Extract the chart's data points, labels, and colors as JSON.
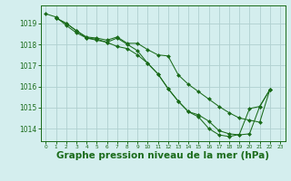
{
  "background_color": "#d4eeee",
  "grid_color": "#b0d0d0",
  "line_color": "#1a6b1a",
  "marker_color": "#1a6b1a",
  "xlabel": "Graphe pression niveau de la mer (hPa)",
  "xlabel_fontsize": 7.5,
  "ytick_labels": [
    "1014",
    "1015",
    "1016",
    "1017",
    "1018",
    "1019"
  ],
  "yticks": [
    1014,
    1015,
    1016,
    1017,
    1018,
    1019
  ],
  "xticks": [
    0,
    1,
    2,
    3,
    4,
    5,
    6,
    7,
    8,
    9,
    10,
    11,
    12,
    13,
    14,
    15,
    16,
    17,
    18,
    19,
    20,
    21,
    22,
    23
  ],
  "ylim": [
    1013.4,
    1019.85
  ],
  "xlim": [
    -0.5,
    23.5
  ],
  "series": [
    {
      "x": [
        1,
        2,
        3,
        4,
        5,
        6,
        7,
        8,
        9,
        10,
        11,
        12,
        13,
        14,
        15,
        16,
        17,
        18,
        19,
        20,
        21,
        22
      ],
      "y": [
        1019.25,
        1019.0,
        1018.65,
        1018.35,
        1018.3,
        1018.2,
        1018.35,
        1018.05,
        1018.05,
        1017.75,
        1017.5,
        1017.45,
        1016.55,
        1016.1,
        1015.75,
        1015.4,
        1015.05,
        1014.75,
        1014.5,
        1014.4,
        1014.3,
        1015.85
      ]
    },
    {
      "x": [
        1,
        2,
        3,
        4,
        5,
        6,
        7,
        8,
        9,
        10,
        11,
        12,
        13,
        14,
        15,
        16,
        17,
        18,
        19,
        20,
        21,
        22
      ],
      "y": [
        1019.25,
        1019.0,
        1018.65,
        1018.3,
        1018.2,
        1018.1,
        1018.3,
        1018.0,
        1017.7,
        1017.1,
        1016.6,
        1015.9,
        1015.3,
        1014.8,
        1014.65,
        1014.35,
        1013.9,
        1013.75,
        1013.7,
        1013.75,
        1015.05,
        1015.85
      ]
    },
    {
      "x": [
        0,
        1,
        2,
        3,
        4,
        5,
        6,
        7,
        8,
        9,
        10,
        11,
        12,
        13,
        14,
        15,
        16,
        17,
        18,
        19,
        20,
        21,
        22
      ],
      "y": [
        1019.45,
        1019.3,
        1018.9,
        1018.55,
        1018.3,
        1018.25,
        1018.1,
        1017.9,
        1017.8,
        1017.5,
        1017.1,
        1016.6,
        1015.9,
        1015.3,
        1014.8,
        1014.55,
        1014.0,
        1013.7,
        1013.62,
        1013.72,
        1014.95,
        1015.05,
        1015.85
      ]
    }
  ]
}
